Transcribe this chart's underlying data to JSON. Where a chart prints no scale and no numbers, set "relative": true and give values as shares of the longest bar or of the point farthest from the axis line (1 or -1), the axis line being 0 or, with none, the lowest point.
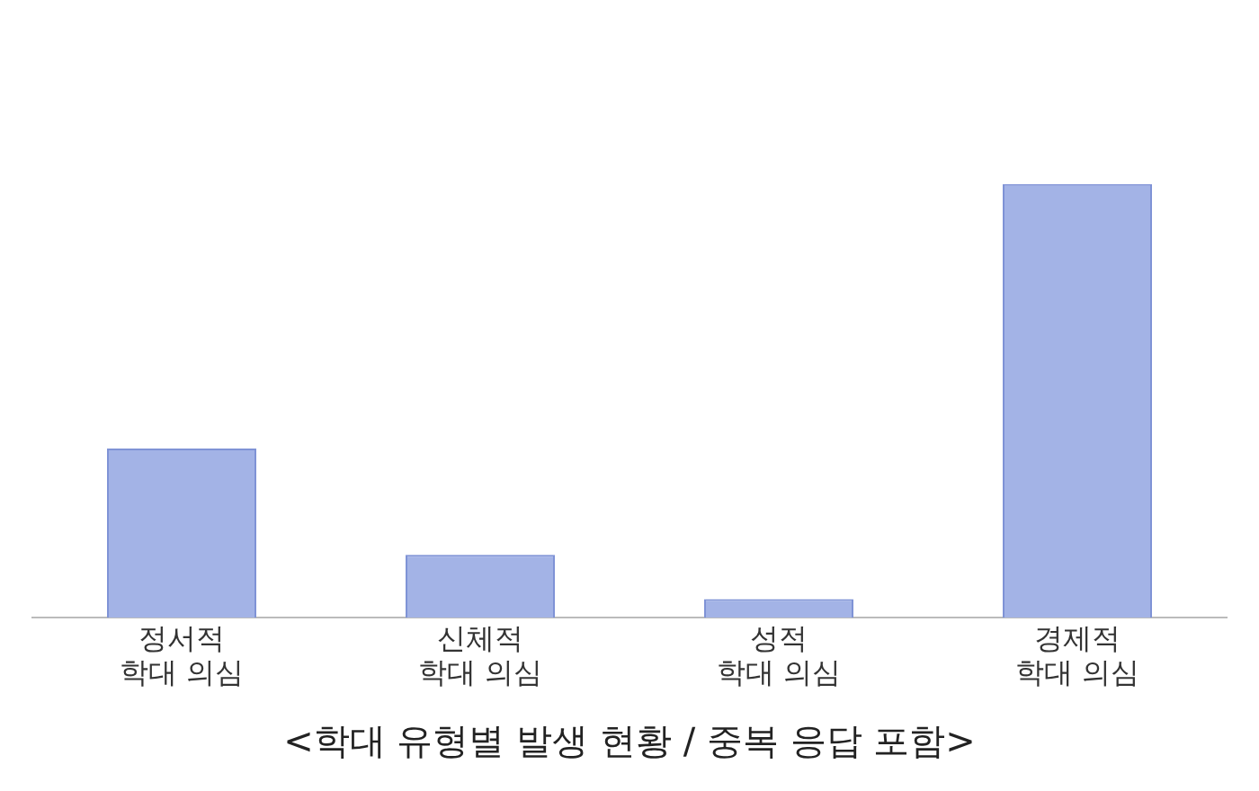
{
  "chart_data": {
    "type": "bar",
    "title": "<학대 유형별 발생 현황 / 중복 응답 포함>",
    "categories": [
      "정서적\n학대 의심",
      "신체적\n학대 의심",
      "성적\n학대 의심",
      "경제적\n학대 의심"
    ],
    "values": [
      0.39,
      0.145,
      0.043,
      1
    ],
    "color": "#a3b3e6",
    "relative": true,
    "legend": false
  }
}
